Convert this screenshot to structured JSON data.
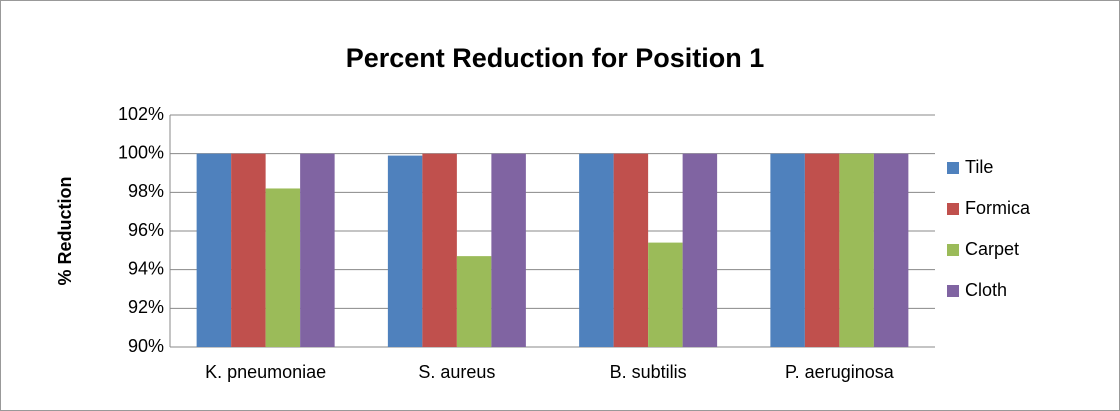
{
  "chart_data": {
    "type": "bar",
    "title": "Percent Reduction for Position 1",
    "y_label": "% Reduction",
    "categories": [
      "K. pneumoniae",
      "S. aureus",
      "B. subtilis",
      "P. aeruginosa"
    ],
    "series": [
      {
        "name": "Tile",
        "color": "#4f81bd",
        "values": [
          100,
          99.9,
          100,
          100
        ]
      },
      {
        "name": "Formica",
        "color": "#c0504d",
        "values": [
          100,
          100,
          100,
          100
        ]
      },
      {
        "name": "Carpet",
        "color": "#9bbb59",
        "values": [
          98.2,
          94.7,
          95.4,
          100
        ]
      },
      {
        "name": "Cloth",
        "color": "#8064a2",
        "values": [
          100,
          100,
          100,
          100
        ]
      }
    ],
    "ylim": [
      90,
      102
    ],
    "yticks": [
      {
        "value": 90,
        "label": "90%"
      },
      {
        "value": 92,
        "label": "92%"
      },
      {
        "value": 94,
        "label": "94%"
      },
      {
        "value": 96,
        "label": "96%"
      },
      {
        "value": 98,
        "label": "98%"
      },
      {
        "value": 100,
        "label": "100%"
      },
      {
        "value": 102,
        "label": "102%"
      }
    ],
    "grid": true,
    "legend": "right"
  }
}
